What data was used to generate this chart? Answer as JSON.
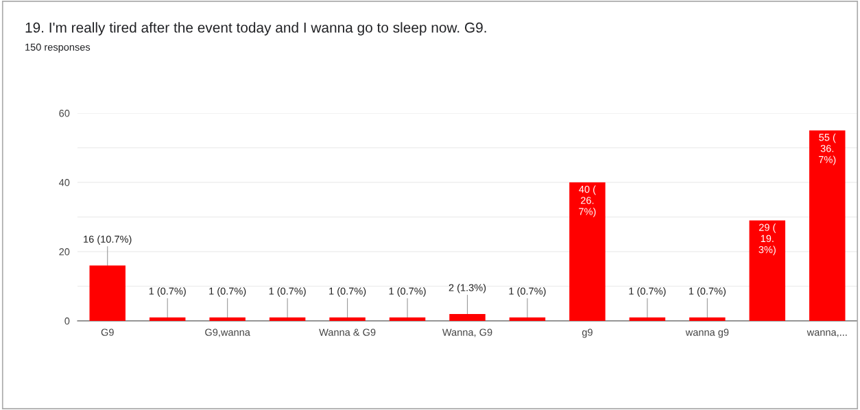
{
  "chart_data": {
    "type": "bar",
    "title": "19. I'm really tired after the event today and I wanna go to sleep now. G9.",
    "subtitle": "150 responses",
    "categories": [
      "G9",
      null,
      "G9,wanna",
      null,
      "Wanna & G9",
      null,
      "Wanna, G9",
      null,
      "g9",
      null,
      "wanna g9",
      null,
      "wanna,..."
    ],
    "values": [
      16,
      1,
      1,
      1,
      1,
      1,
      2,
      1,
      40,
      1,
      1,
      29,
      55
    ],
    "value_labels": [
      "16 (10.7%)",
      "1 (0.7%)",
      "1 (0.7%)",
      "1 (0.7%)",
      "1 (0.7%)",
      "1 (0.7%)",
      "2 (1.3%)",
      "1 (0.7%)",
      "40 (\n26.\n7%)",
      "1 (0.7%)",
      "1 (0.7%)",
      "29 (\n19.\n3%)",
      "55 (\n36.\n7%)"
    ],
    "color": "#ff0000",
    "ylim": [
      0,
      60
    ],
    "yticks": [
      0,
      {
        "value": 10,
        "label": null
      },
      20,
      {
        "value": 30,
        "label": null
      },
      40,
      {
        "value": 50,
        "label": null
      },
      60
    ],
    "grid": "y"
  }
}
